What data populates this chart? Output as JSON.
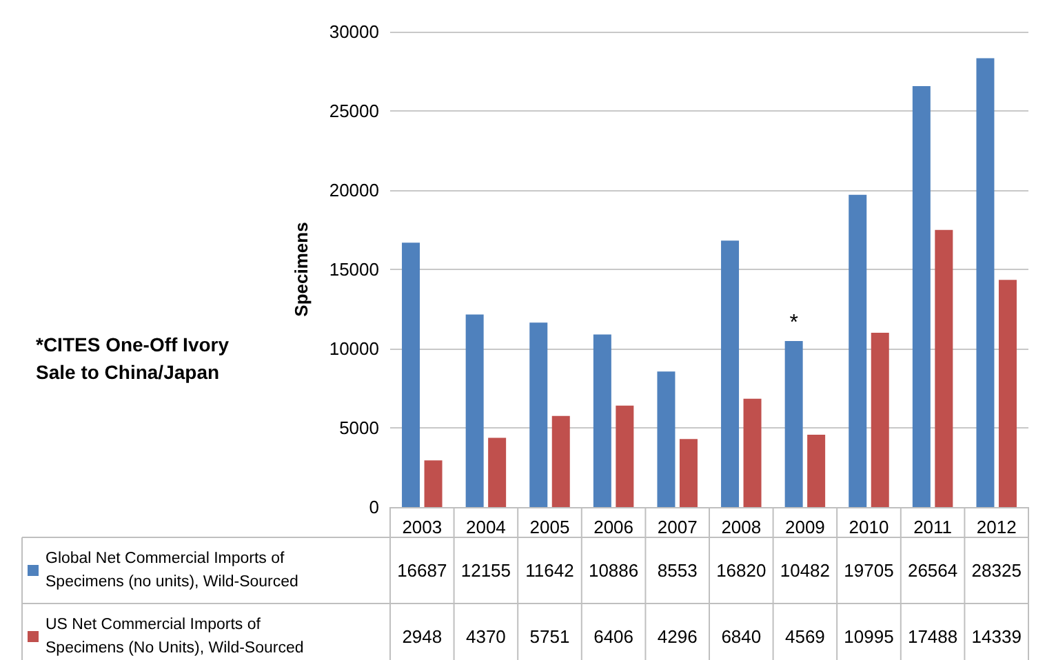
{
  "chart_data": {
    "type": "bar",
    "ylabel": "Specimens",
    "categories": [
      "2003",
      "2004",
      "2005",
      "2006",
      "2007",
      "2008",
      "2009",
      "2010",
      "2011",
      "2012"
    ],
    "series": [
      {
        "name": "Global Net Commercial Imports of Specimens (no units), Wild-Sourced",
        "color": "#4f81bd",
        "values": [
          16687,
          12155,
          11642,
          10886,
          8553,
          16820,
          10482,
          19705,
          26564,
          28325
        ]
      },
      {
        "name": "US Net Commercial Imports of Specimens (No Units), Wild-Sourced",
        "color": "#c0504d",
        "values": [
          2948,
          4370,
          5751,
          6406,
          4296,
          6840,
          4569,
          10995,
          17488,
          14339
        ]
      }
    ],
    "ylim": [
      0,
      30000
    ],
    "yticks": [
      0,
      5000,
      10000,
      15000,
      20000,
      25000,
      30000
    ],
    "grid": "y",
    "legend": "bottom",
    "data_labels": true,
    "annotations": [
      "*CITES One-Off Ivory Sale to China/Japan",
      {
        "text": "*",
        "x": "2009",
        "y": 10482
      }
    ]
  }
}
